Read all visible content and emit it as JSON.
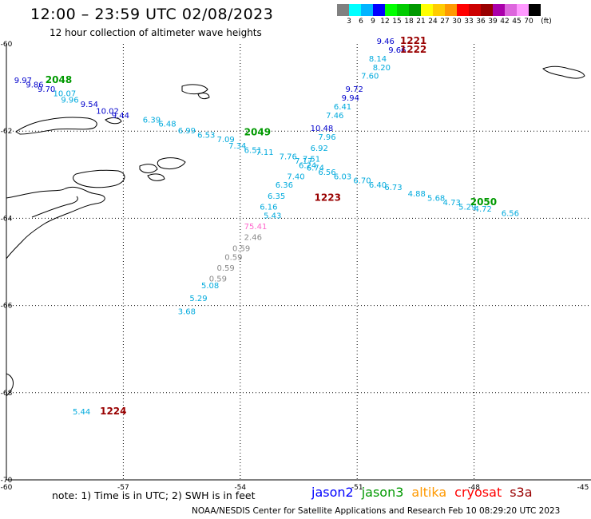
{
  "title": "12:00 – 23:59 UTC 02/08/2023",
  "subtitle": "12 hour collection of altimeter wave heights",
  "legend": {
    "unit": "(ft)",
    "colors": [
      "#808080",
      "#00ffff",
      "#00b4ff",
      "#0000ff",
      "#00ff00",
      "#00cc00",
      "#009900",
      "#ffff00",
      "#ffcc00",
      "#ff9900",
      "#ff0000",
      "#cc0000",
      "#990000",
      "#aa00aa",
      "#dd66dd",
      "#ff99ff",
      "#000000"
    ],
    "ticks": [
      "3",
      "6",
      "9",
      "12",
      "15",
      "18",
      "21",
      "24",
      "27",
      "30",
      "33",
      "36",
      "39",
      "42",
      "45",
      "70"
    ]
  },
  "axes": {
    "lat_labels": [
      "-60",
      "-62",
      "-64",
      "-66",
      "-68",
      "-70"
    ],
    "lon_labels": [
      "-60",
      "-57",
      "-54",
      "-51",
      "-48",
      "-45"
    ]
  },
  "tracks": [
    {
      "color": "#0000cc",
      "points": [
        {
          "text": "9.97",
          "lon": -59.8,
          "lat": -60.9
        },
        {
          "text": "9.86",
          "lon": -59.5,
          "lat": -61.0
        },
        {
          "text": "9.70",
          "lon": -59.2,
          "lat": -61.1
        },
        {
          "text": "9.54",
          "lon": -58.1,
          "lat": -61.45
        },
        {
          "text": "10.02",
          "lon": -57.7,
          "lat": -61.6
        },
        {
          "text": "9.44",
          "lon": -57.3,
          "lat": -61.7
        },
        {
          "text": "9.46",
          "lon": -50.5,
          "lat": -60.0
        },
        {
          "text": "9.66",
          "lon": -50.2,
          "lat": -60.2
        },
        {
          "text": "9.72",
          "lon": -51.3,
          "lat": -61.1
        },
        {
          "text": "9.94",
          "lon": -51.4,
          "lat": -61.3
        },
        {
          "text": "10.48",
          "lon": -52.2,
          "lat": -62.0
        }
      ]
    },
    {
      "color": "#00aadd",
      "points": [
        {
          "text": "10.07",
          "lon": -58.8,
          "lat": -61.2
        },
        {
          "text": "9.96",
          "lon": -58.6,
          "lat": -61.35
        },
        {
          "text": "6.39",
          "lon": -56.5,
          "lat": -61.8
        },
        {
          "text": "6.48",
          "lon": -56.1,
          "lat": -61.9
        },
        {
          "text": "6.99",
          "lon": -55.6,
          "lat": -62.05
        },
        {
          "text": "6.53",
          "lon": -55.1,
          "lat": -62.15
        },
        {
          "text": "7.09",
          "lon": -54.6,
          "lat": -62.25
        },
        {
          "text": "7.34",
          "lon": -54.3,
          "lat": -62.4
        },
        {
          "text": "6.51",
          "lon": -53.9,
          "lat": -62.5
        },
        {
          "text": "7.11",
          "lon": -53.6,
          "lat": -62.55
        },
        {
          "text": "7.76",
          "lon": -53.0,
          "lat": -62.65
        },
        {
          "text": "7.17",
          "lon": -52.6,
          "lat": -62.75
        },
        {
          "text": "6.74",
          "lon": -52.3,
          "lat": -62.9
        },
        {
          "text": "6.56",
          "lon": -52.0,
          "lat": -63.0
        },
        {
          "text": "6.03",
          "lon": -51.6,
          "lat": -63.1
        },
        {
          "text": "6.70",
          "lon": -51.1,
          "lat": -63.2
        },
        {
          "text": "6.40",
          "lon": -50.7,
          "lat": -63.3
        },
        {
          "text": "6.73",
          "lon": -50.3,
          "lat": -63.35
        },
        {
          "text": "4.88",
          "lon": -49.7,
          "lat": -63.5
        },
        {
          "text": "5.68",
          "lon": -49.2,
          "lat": -63.6
        },
        {
          "text": "4.73",
          "lon": -48.8,
          "lat": -63.7
        },
        {
          "text": "5.29",
          "lon": -48.4,
          "lat": -63.8
        },
        {
          "text": "4.72",
          "lon": -48.0,
          "lat": -63.85
        },
        {
          "text": "6.56",
          "lon": -47.3,
          "lat": -63.95
        },
        {
          "text": "8.14",
          "lon": -50.7,
          "lat": -60.4
        },
        {
          "text": "8.20",
          "lon": -50.6,
          "lat": -60.6
        },
        {
          "text": "7.60",
          "lon": -50.9,
          "lat": -60.8
        },
        {
          "text": "6.41",
          "lon": -51.6,
          "lat": -61.5
        },
        {
          "text": "7.46",
          "lon": -51.8,
          "lat": -61.7
        },
        {
          "text": "7.96",
          "lon": -52.0,
          "lat": -62.2
        },
        {
          "text": "6.92",
          "lon": -52.2,
          "lat": -62.45
        },
        {
          "text": "7.51",
          "lon": -52.4,
          "lat": -62.7
        },
        {
          "text": "6.24",
          "lon": -52.5,
          "lat": -62.85
        },
        {
          "text": "7.40",
          "lon": -52.8,
          "lat": -63.1
        },
        {
          "text": "6.36",
          "lon": -53.1,
          "lat": -63.3
        },
        {
          "text": "6.35",
          "lon": -53.3,
          "lat": -63.55
        },
        {
          "text": "6.16",
          "lon": -53.5,
          "lat": -63.8
        },
        {
          "text": "5.43",
          "lon": -53.4,
          "lat": -64.0
        },
        {
          "text": "5.08",
          "lon": -55.0,
          "lat": -65.6
        },
        {
          "text": "5.29",
          "lon": -55.3,
          "lat": -65.9
        },
        {
          "text": "3.68",
          "lon": -55.6,
          "lat": -66.2
        },
        {
          "text": "5.44",
          "lon": -58.3,
          "lat": -68.5
        }
      ]
    },
    {
      "color": "#888888",
      "points": [
        {
          "text": "2.46",
          "lon": -53.9,
          "lat": -64.5
        },
        {
          "text": "0.59",
          "lon": -54.2,
          "lat": -64.75
        },
        {
          "text": "0.59",
          "lon": -54.4,
          "lat": -64.95
        },
        {
          "text": "0.59",
          "lon": -54.6,
          "lat": -65.2
        },
        {
          "text": "0.59",
          "lon": -54.8,
          "lat": -65.45
        }
      ]
    },
    {
      "color": "#ff66cc",
      "points": [
        {
          "text": "75.41",
          "lon": -53.9,
          "lat": -64.25
        }
      ]
    }
  ],
  "times": [
    {
      "text": "1221",
      "color": "#990000",
      "lon": -49.9,
      "lat": -60.0
    },
    {
      "text": "1222",
      "color": "#990000",
      "lon": -49.9,
      "lat": -60.2
    },
    {
      "text": "1223",
      "color": "#990000",
      "lon": -52.1,
      "lat": -63.6
    },
    {
      "text": "1224",
      "color": "#990000",
      "lon": -57.6,
      "lat": -68.5
    },
    {
      "text": "2048",
      "color": "#009900",
      "lon": -59.0,
      "lat": -60.9
    },
    {
      "text": "2049",
      "color": "#009900",
      "lon": -53.9,
      "lat": -62.1
    },
    {
      "text": "2050",
      "color": "#009900",
      "lon": -48.1,
      "lat": -63.7
    }
  ],
  "note": "note:  1) Time is in UTC;  2) SWH is in feet",
  "satellites": [
    {
      "name": "jason2",
      "color": "#0000ff"
    },
    {
      "name": "jason3",
      "color": "#009900"
    },
    {
      "name": "altika",
      "color": "#ff9900"
    },
    {
      "name": "cryosat",
      "color": "#ff0000"
    },
    {
      "name": "s3a",
      "color": "#990000"
    }
  ],
  "credit": "NOAA/NESDIS Center for Satellite Applications and Research     Feb 10 08:29:20 UTC 2023"
}
